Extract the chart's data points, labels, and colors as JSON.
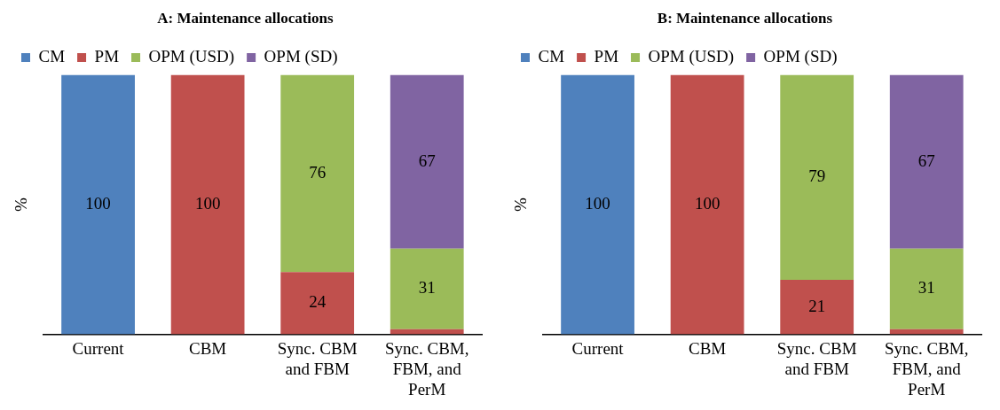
{
  "chart_data": [
    {
      "type": "bar",
      "title": "A: Maintenance allocations",
      "ylabel": "%",
      "stacked": true,
      "legend": "top",
      "tick_labels": "x",
      "grid": false,
      "ylim": [
        0,
        100
      ],
      "categories": [
        "Current",
        "CBM",
        "Sync. CBM and FBM",
        "Sync. CBM, FBM, and PerM"
      ],
      "series": [
        {
          "name": "CM",
          "color": "#4f81bd",
          "values": [
            100,
            null,
            null,
            null
          ],
          "value_labels": [
            "100",
            null,
            null,
            null
          ]
        },
        {
          "name": "PM",
          "color": "#c0504d",
          "values": [
            null,
            100,
            24,
            2
          ],
          "value_labels": [
            null,
            "100",
            "24",
            null
          ]
        },
        {
          "name": "OPM (USD)",
          "color": "#9bbb59",
          "values": [
            null,
            null,
            76,
            31
          ],
          "value_labels": [
            null,
            null,
            "76",
            "31"
          ]
        },
        {
          "name": "OPM (SD)",
          "color": "#8064a2",
          "values": [
            null,
            null,
            null,
            67
          ],
          "value_labels": [
            null,
            null,
            null,
            "67"
          ]
        }
      ]
    },
    {
      "type": "bar",
      "title": "B: Maintenance allocations",
      "ylabel": "%",
      "stacked": true,
      "legend": "top",
      "tick_labels": "x",
      "grid": false,
      "ylim": [
        0,
        100
      ],
      "categories": [
        "Current",
        "CBM",
        "Sync. CBM and FBM",
        "Sync. CBM, FBM, and PerM"
      ],
      "series": [
        {
          "name": "CM",
          "color": "#4f81bd",
          "values": [
            100,
            null,
            null,
            null
          ],
          "value_labels": [
            "100",
            null,
            null,
            null
          ]
        },
        {
          "name": "PM",
          "color": "#c0504d",
          "values": [
            null,
            100,
            21,
            2
          ],
          "value_labels": [
            null,
            "100",
            "21",
            null
          ]
        },
        {
          "name": "OPM (USD)",
          "color": "#9bbb59",
          "values": [
            null,
            null,
            79,
            31
          ],
          "value_labels": [
            null,
            null,
            "79",
            "31"
          ]
        },
        {
          "name": "OPM (SD)",
          "color": "#8064a2",
          "values": [
            null,
            null,
            null,
            67
          ],
          "value_labels": [
            null,
            null,
            null,
            "67"
          ]
        }
      ]
    }
  ]
}
